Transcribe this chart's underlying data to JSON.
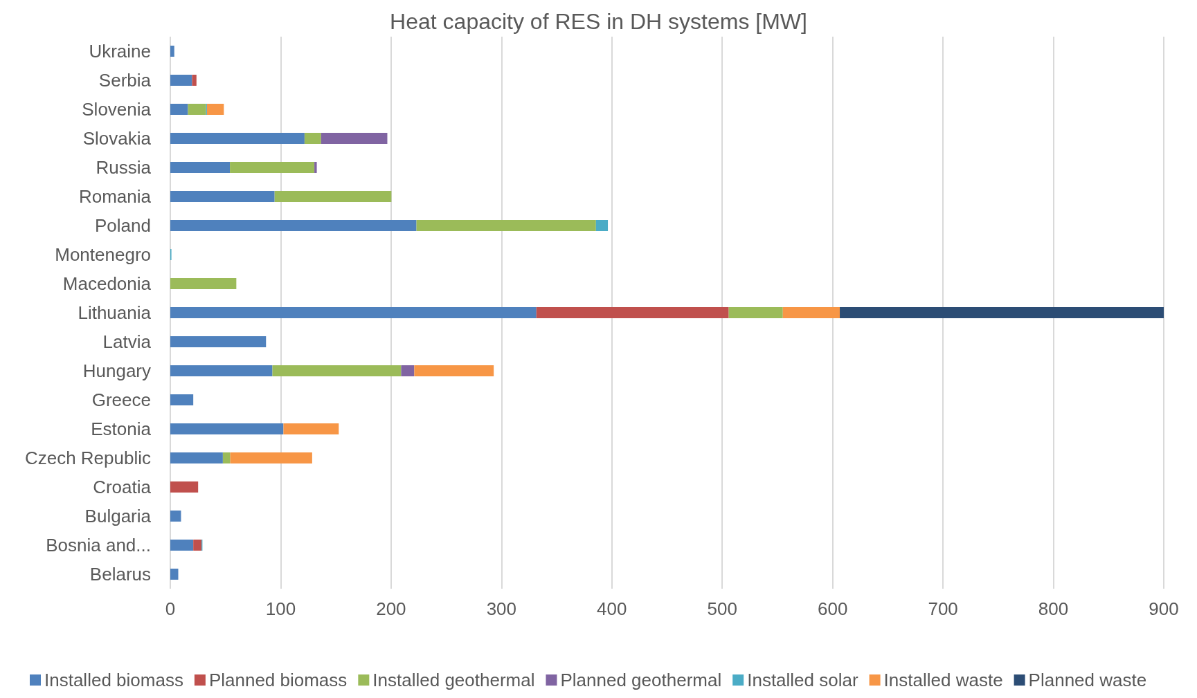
{
  "chart_data": {
    "type": "bar",
    "orientation": "horizontal",
    "stacked": true,
    "title": "Heat capacity of RES in DH systems [MW]",
    "categories": [
      "Ukraine",
      "Serbia",
      "Slovenia",
      "Slovakia",
      "Russia",
      "Romania",
      "Poland",
      "Montenegro",
      "Macedonia",
      "Lithuania",
      "Latvia",
      "Hungary",
      "Greece",
      "Estonia",
      "Czech Republic",
      "Croatia",
      "Bulgaria",
      "Bosnia and...",
      "Belarus"
    ],
    "series": [
      {
        "name": "Installed biomass",
        "color": "#4f81bd",
        "values": [
          3.6,
          19.7,
          16,
          121.6,
          54,
          94.5,
          223,
          null,
          null,
          331.6,
          86.7,
          92.5,
          20.8,
          102.5,
          47.6,
          null,
          9.7,
          20.8,
          7.2
        ]
      },
      {
        "name": "Planned biomass",
        "color": "#c0504d",
        "values": [
          null,
          4,
          null,
          null,
          null,
          null,
          null,
          null,
          null,
          174.3,
          null,
          null,
          null,
          null,
          null,
          25.2,
          null,
          7.5,
          null
        ]
      },
      {
        "name": "Installed geothermal",
        "color": "#9bbb59",
        "values": [
          null,
          null,
          16.4,
          15,
          76.5,
          105.8,
          162.6,
          null,
          59.8,
          49,
          null,
          116.6,
          null,
          null,
          6.7,
          null,
          null,
          null,
          null
        ]
      },
      {
        "name": "Planned geothermal",
        "color": "#8064a2",
        "values": [
          null,
          null,
          null,
          60,
          2.2,
          null,
          null,
          null,
          null,
          null,
          null,
          11.9,
          null,
          null,
          null,
          null,
          null,
          null,
          null
        ]
      },
      {
        "name": "Installed solar",
        "color": "#4bacc6",
        "values": [
          null,
          null,
          0.8,
          null,
          null,
          null,
          10.8,
          1,
          null,
          null,
          null,
          null,
          null,
          null,
          null,
          null,
          null,
          0.8,
          null
        ]
      },
      {
        "name": "Installed waste",
        "color": "#f79646",
        "values": [
          null,
          null,
          15.3,
          null,
          null,
          null,
          null,
          null,
          null,
          51.6,
          null,
          72,
          null,
          50.1,
          74.2,
          null,
          null,
          null,
          null
        ]
      },
      {
        "name": "Planned waste",
        "color": "#2c4d75",
        "values": [
          null,
          null,
          null,
          null,
          null,
          null,
          null,
          null,
          null,
          296,
          null,
          null,
          null,
          null,
          null,
          null,
          null,
          null,
          null
        ]
      }
    ],
    "xlim": [
      0,
      900
    ],
    "xticks": [
      0,
      100,
      200,
      300,
      400,
      500,
      600,
      700,
      800,
      900
    ],
    "grid": "x",
    "legend": "bottom"
  }
}
